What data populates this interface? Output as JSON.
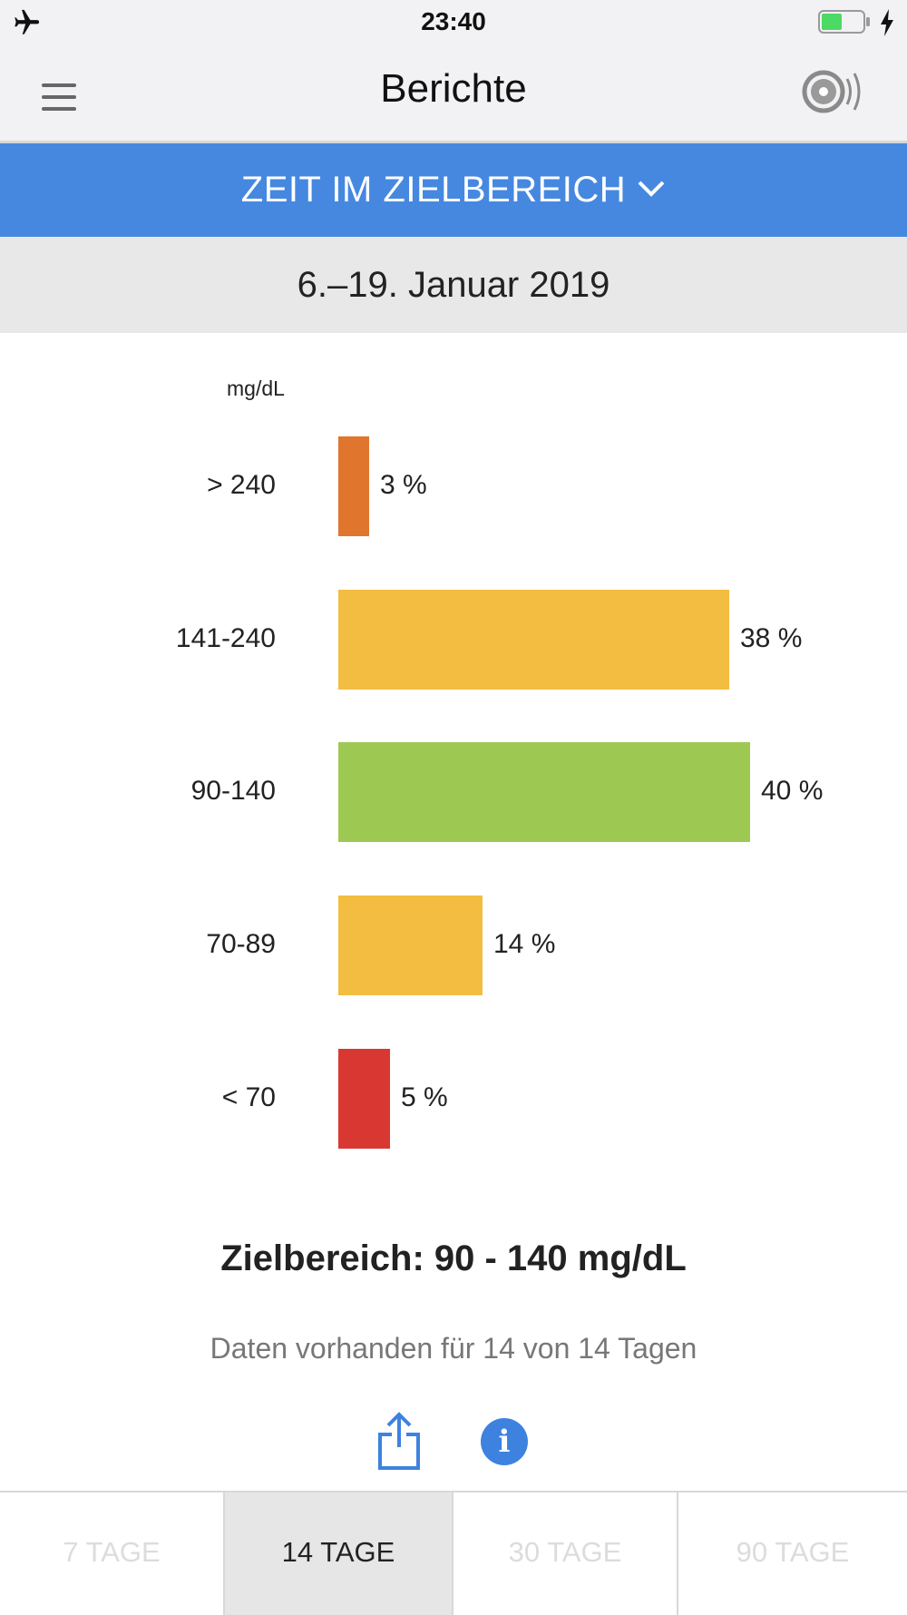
{
  "status_bar": {
    "time": "23:40"
  },
  "nav": {
    "title": "Berichte"
  },
  "report_selector": {
    "label": "ZEIT IM ZIELBEREICH"
  },
  "date_range": "6.–19. Januar 2019",
  "chart_data": {
    "type": "bar",
    "orientation": "horizontal",
    "unit": "mg/dL",
    "categories": [
      "> 240",
      "141-240",
      "90-140",
      "70-89",
      "< 70"
    ],
    "values": [
      3,
      38,
      40,
      14,
      5
    ],
    "value_labels": [
      "3 %",
      "38 %",
      "40 %",
      "14 %",
      "5 %"
    ],
    "colors": [
      "#e0752d",
      "#f3bd41",
      "#9dc953",
      "#f3bd41",
      "#d93832"
    ]
  },
  "summary": {
    "target_range": "Zielbereich: 90 - 140 mg/dL",
    "data_note": "Daten vorhanden für 14 von 14 Tagen"
  },
  "actions": {
    "share_icon": "share-icon",
    "info_icon": "info-icon"
  },
  "tabs": [
    {
      "label": "7 TAGE",
      "active": false
    },
    {
      "label": "14 TAGE",
      "active": true
    },
    {
      "label": "30 TAGE",
      "active": false
    },
    {
      "label": "90 TAGE",
      "active": false
    }
  ]
}
